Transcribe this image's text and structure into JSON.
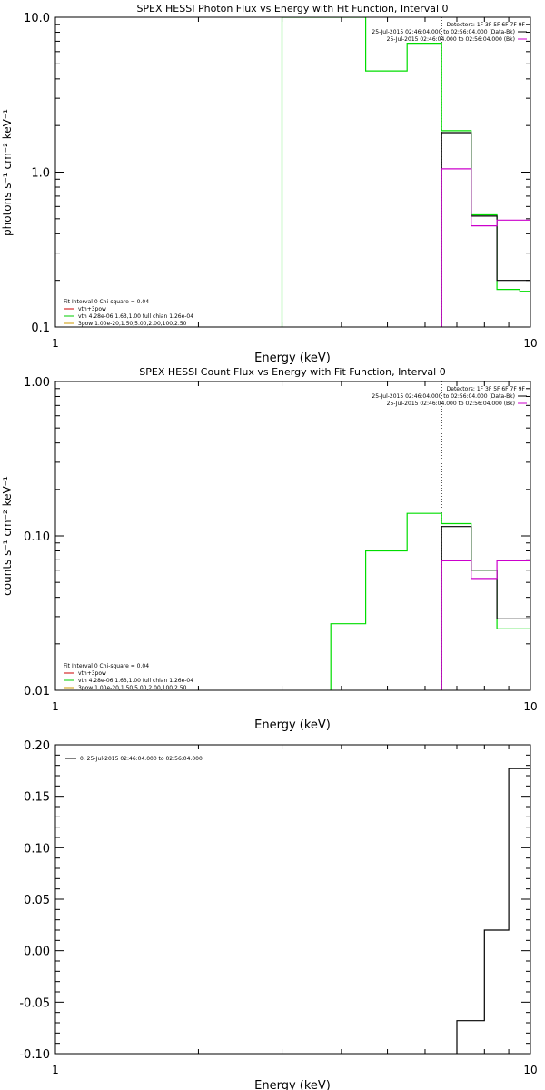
{
  "chart_data": [
    {
      "type": "line",
      "title": "SPEX HESSI Photon Flux vs Energy with Fit Function, Interval 0",
      "xlabel": "Energy (keV)",
      "ylabel": "photons s⁻¹ cm⁻² keV⁻¹",
      "xscale": "log",
      "yscale": "log",
      "xlim": [
        1,
        10
      ],
      "ylim": [
        0.1,
        10.0
      ],
      "xticks": [
        1,
        10
      ],
      "xtick_labels": [
        "1",
        "10"
      ],
      "yticks": [
        0.1,
        1.0,
        10.0
      ],
      "ytick_labels": [
        "0.1",
        "1.0",
        "10.0"
      ],
      "header_lines": [
        "Detectors: 1F 3F 5F 6F 7F 9F",
        "25-Jul-2015 02:46:04.000 to 02:56:04.000 (Data-Bk)",
        "25-Jul-2015 02:46:04.000 to 02:56:04.000 (Bk)"
      ],
      "legend_lines": [
        "Fit Interval 0   Chi-square = 0.04",
        "vth+3pow",
        "vth 4.28e-06,1.63,1.00  full chian 1.26e-04",
        "3pow 1.00e-20,1.50,5.00,2.00,100,2.50"
      ],
      "legend_colors": [
        "#000000",
        "#cc0000",
        "#00cc00",
        "#cc9900"
      ],
      "vline_x": 6.5,
      "series": [
        {
          "color": "#00dd00",
          "x": [
            3.0,
            3.0,
            4.5,
            4.5,
            5.5,
            5.5,
            6.5,
            6.5,
            7.5,
            7.5,
            8.5,
            8.5,
            9.5,
            9.5,
            10.0,
            10.0
          ],
          "y": [
            0.1,
            10.0,
            10.0,
            4.5,
            4.5,
            6.8,
            6.8,
            1.85,
            1.85,
            0.53,
            0.53,
            0.175,
            0.175,
            0.17,
            0.17,
            0.1
          ]
        },
        {
          "color": "#000000",
          "x": [
            6.5,
            6.5,
            7.5,
            7.5,
            8.5,
            8.5,
            9.5,
            9.5,
            10.0
          ],
          "y": [
            0.1,
            1.8,
            1.8,
            0.52,
            0.52,
            0.2,
            0.2,
            0.2,
            0.2
          ]
        },
        {
          "color": "#cc00cc",
          "x": [
            6.5,
            6.5,
            7.5,
            7.5,
            8.5,
            8.5,
            9.5,
            9.5,
            10.0
          ],
          "y": [
            0.1,
            1.05,
            1.05,
            0.45,
            0.45,
            0.49,
            0.49,
            0.49,
            0.49
          ]
        }
      ]
    },
    {
      "type": "line",
      "title": "SPEX HESSI Count Flux vs Energy with Fit Function, Interval 0",
      "xlabel": "Energy (keV)",
      "ylabel": "counts s⁻¹ cm⁻² keV⁻¹",
      "xscale": "log",
      "yscale": "log",
      "xlim": [
        1,
        10
      ],
      "ylim": [
        0.01,
        1.0
      ],
      "xticks": [
        1,
        10
      ],
      "xtick_labels": [
        "1",
        "10"
      ],
      "yticks": [
        0.01,
        0.1,
        1.0
      ],
      "ytick_labels": [
        "0.01",
        "0.10",
        "1.00"
      ],
      "header_lines": [
        "Detectors: 1F 3F 5F 6F 7F 9F",
        "25-Jul-2015 02:46:04.000 to 02:56:04.000 (Data-Bk)",
        "25-Jul-2015 02:46:04.000 to 02:56:04.000 (Bk)"
      ],
      "legend_lines": [
        "Fit Interval 0   Chi-square = 0.04",
        "vth+3pow",
        "vth 4.28e-06,1.63,1.00  full chian 1.26e-04",
        "3pow 1.00e-20,1.50,5.00,2.00,100,2.50"
      ],
      "legend_colors": [
        "#000000",
        "#cc0000",
        "#00cc00",
        "#cc9900"
      ],
      "vline_x": 6.5,
      "series": [
        {
          "color": "#00dd00",
          "x": [
            3.8,
            3.8,
            4.5,
            4.5,
            5.5,
            5.5,
            6.5,
            6.5,
            7.5,
            7.5,
            8.5,
            8.5,
            9.5,
            9.5,
            10.0,
            10.0
          ],
          "y": [
            0.01,
            0.027,
            0.027,
            0.08,
            0.08,
            0.14,
            0.14,
            0.12,
            0.12,
            0.06,
            0.06,
            0.025,
            0.025,
            0.025,
            0.025,
            0.01
          ]
        },
        {
          "color": "#000000",
          "x": [
            6.5,
            6.5,
            7.5,
            7.5,
            8.5,
            8.5,
            9.5,
            9.5,
            10.0
          ],
          "y": [
            0.01,
            0.115,
            0.115,
            0.06,
            0.06,
            0.029,
            0.029,
            0.029,
            0.029
          ]
        },
        {
          "color": "#cc00cc",
          "x": [
            6.5,
            6.5,
            7.5,
            7.5,
            8.5,
            8.5,
            9.5,
            9.5,
            10.0
          ],
          "y": [
            0.01,
            0.069,
            0.069,
            0.053,
            0.053,
            0.069,
            0.069,
            0.069,
            0.069
          ]
        }
      ]
    },
    {
      "type": "line",
      "title": "",
      "xlabel": "Energy (keV)",
      "ylabel": "",
      "xscale": "log",
      "yscale": "linear",
      "xlim": [
        1,
        10
      ],
      "ylim": [
        -0.1,
        0.2
      ],
      "xticks": [
        1,
        10
      ],
      "xtick_labels": [
        "1",
        "10"
      ],
      "yticks": [
        -0.1,
        -0.05,
        0.0,
        0.05,
        0.1,
        0.15,
        0.2
      ],
      "ytick_labels": [
        "-0.10",
        "-0.05",
        "0.00",
        "0.05",
        "0.10",
        "0.15",
        "0.20"
      ],
      "legend_lines": [
        "0. 25-Jul-2015 02:46:04.000 to 02:56:04.000"
      ],
      "legend_colors": [
        "#000000"
      ],
      "series": [
        {
          "color": "#000000",
          "x": [
            7.0,
            7.0,
            8.0,
            8.0,
            9.0,
            9.0,
            10.0
          ],
          "y": [
            -0.1,
            -0.068,
            -0.068,
            0.02,
            0.02,
            0.177,
            0.177
          ]
        }
      ]
    }
  ]
}
